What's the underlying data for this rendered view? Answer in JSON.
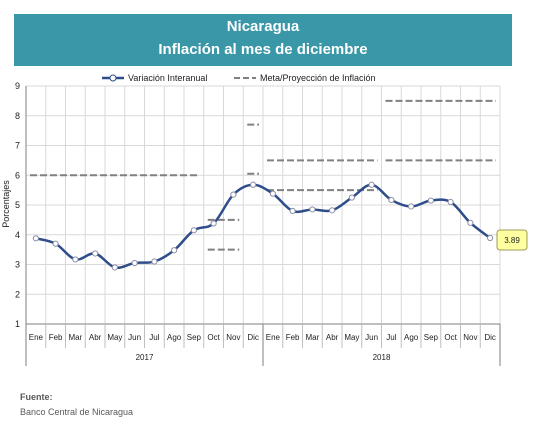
{
  "header": {
    "country": "Nicaragua",
    "title": "Inflación al mes de diciembre"
  },
  "chart_data": {
    "type": "line",
    "ylabel": "Porcentajes",
    "ylim": [
      1,
      9
    ],
    "yticks": [
      "1",
      "2",
      "3",
      "4",
      "5",
      "6",
      "7",
      "8",
      "9"
    ],
    "grid": true,
    "legend_position": "top",
    "categories": [
      "Ene",
      "Feb",
      "Mar",
      "Abr",
      "May",
      "Jun",
      "Jul",
      "Ago",
      "Sep",
      "Oct",
      "Nov",
      "Dic",
      "Ene",
      "Feb",
      "Mar",
      "Abr",
      "May",
      "Jun",
      "Jul",
      "Ago",
      "Sep",
      "Oct",
      "Nov",
      "Dic"
    ],
    "years": [
      {
        "label": "2017",
        "start": 0,
        "end": 11
      },
      {
        "label": "2018",
        "start": 12,
        "end": 23
      }
    ],
    "series": [
      {
        "name": "Variación Interanual",
        "color": "#2f4d8a",
        "values": [
          3.88,
          3.7,
          3.17,
          3.37,
          2.9,
          3.05,
          3.1,
          3.48,
          4.15,
          4.38,
          5.35,
          5.68,
          5.38,
          4.8,
          4.85,
          4.82,
          5.25,
          5.68,
          5.17,
          4.95,
          5.15,
          5.1,
          4.4,
          3.89
        ]
      }
    ],
    "goal_series": {
      "name": "Meta/Proyección de Inflación",
      "color": "#808080",
      "segments": [
        {
          "start": 0,
          "end": 8,
          "value": 6.0
        },
        {
          "start": 9,
          "end": 10,
          "value": 4.5
        },
        {
          "start": 9,
          "end": 10,
          "value": 3.5
        },
        {
          "start": 11,
          "end": 11,
          "value": 7.7
        },
        {
          "start": 11,
          "end": 11,
          "value": 6.05
        },
        {
          "start": 12,
          "end": 17,
          "value": 6.5
        },
        {
          "start": 12,
          "end": 17,
          "value": 5.5
        },
        {
          "start": 18,
          "end": 23,
          "value": 8.5
        },
        {
          "start": 18,
          "end": 23,
          "value": 6.5
        }
      ]
    },
    "last_value_label": "3.89"
  },
  "footer": {
    "source_label": "Fuente:",
    "source": "Banco Central de Nicaragua"
  },
  "colors": {
    "banner": "#3a97a8",
    "line": "#2f4d8a",
    "goal": "#808080",
    "callout": "#ffffa0"
  }
}
